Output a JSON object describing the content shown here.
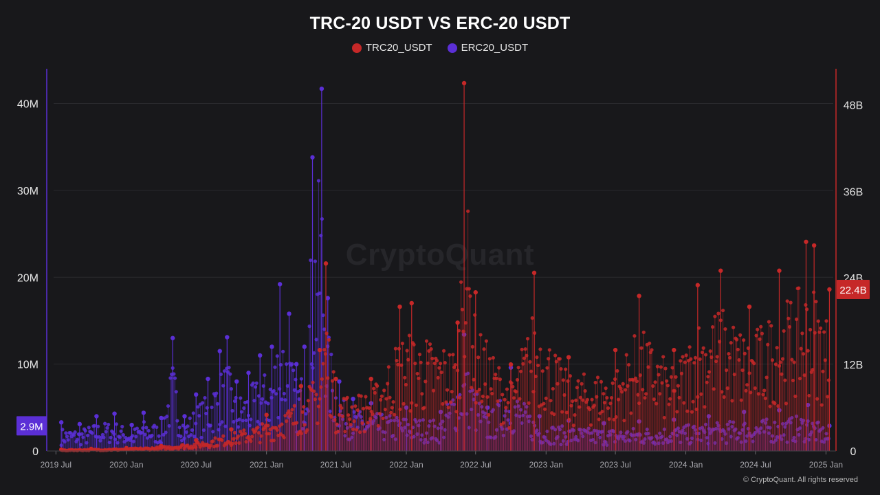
{
  "page": {
    "title": "TRC-20 USDT VS ERC-20 USDT",
    "watermark": "CryptoQuant",
    "copyright": "© CryptoQuant. All rights reserved"
  },
  "legend": [
    {
      "label": "TRC20_USDT",
      "color": "#c62828"
    },
    {
      "label": "ERC20_USDT",
      "color": "#5b2fd6"
    }
  ],
  "colors": {
    "background": "#18181b",
    "trc": "#c62828",
    "erc": "#5b2fd6",
    "grid": "#2a2a2e",
    "axis_text": "#e6e6e6"
  },
  "chart_data": {
    "type": "scatter",
    "title": "TRC-20 USDT VS ERC-20 USDT",
    "x_type": "date",
    "x_range": [
      "2019-06-25",
      "2025-01-20"
    ],
    "x_ticks": [
      "2019 Jul",
      "2020 Jan",
      "2020 Jul",
      "2021 Jan",
      "2021 Jul",
      "2022 Jan",
      "2022 Jul",
      "2023 Jan",
      "2023 Jul",
      "2024 Jan",
      "2024 Jul",
      "2025 Jan"
    ],
    "y_left": {
      "series": "ERC20_USDT",
      "range": [
        0,
        44000000
      ],
      "ticks": [
        "0",
        "10M",
        "20M",
        "30M",
        "40M"
      ],
      "last_value_badge": "2.9M"
    },
    "y_right": {
      "series": "TRC20_USDT",
      "range": [
        0,
        53000000000
      ],
      "ticks": [
        "0",
        "12B",
        "24B",
        "36B",
        "48B"
      ],
      "last_value_badge": "22.4B"
    },
    "grid": true,
    "legend_position": "top-center",
    "series": [
      {
        "name": "ERC20_USDT",
        "axis": "left",
        "points": [
          [
            "2019-07-15",
            3300000
          ],
          [
            "2019-09-01",
            3100000
          ],
          [
            "2019-10-15",
            4000000
          ],
          [
            "2019-12-01",
            4300000
          ],
          [
            "2020-01-15",
            3000000
          ],
          [
            "2020-02-15",
            4400000
          ],
          [
            "2020-04-01",
            3800000
          ],
          [
            "2020-05-01",
            13000000
          ],
          [
            "2020-06-01",
            4000000
          ],
          [
            "2020-07-01",
            6500000
          ],
          [
            "2020-08-01",
            8300000
          ],
          [
            "2020-09-01",
            11500000
          ],
          [
            "2020-09-20",
            13100000
          ],
          [
            "2020-10-15",
            8000000
          ],
          [
            "2020-11-15",
            9000000
          ],
          [
            "2020-12-15",
            11000000
          ],
          [
            "2021-01-15",
            12000000
          ],
          [
            "2021-02-05",
            19200000
          ],
          [
            "2021-03-01",
            15800000
          ],
          [
            "2021-03-20",
            10000000
          ],
          [
            "2021-04-10",
            12000000
          ],
          [
            "2021-05-01",
            33800000
          ],
          [
            "2021-05-25",
            41700000
          ],
          [
            "2021-06-10",
            17600000
          ],
          [
            "2021-07-10",
            8000000
          ],
          [
            "2021-08-15",
            6000000
          ],
          [
            "2021-10-01",
            5500000
          ],
          [
            "2022-01-01",
            5000000
          ],
          [
            "2022-04-01",
            4500000
          ],
          [
            "2022-06-01",
            13400000
          ],
          [
            "2022-08-01",
            5000000
          ],
          [
            "2022-10-01",
            9600000
          ],
          [
            "2022-12-15",
            4000000
          ],
          [
            "2023-03-01",
            3500000
          ],
          [
            "2023-06-01",
            3200000
          ],
          [
            "2023-09-01",
            3400000
          ],
          [
            "2023-12-01",
            3600000
          ],
          [
            "2024-03-01",
            4000000
          ],
          [
            "2024-06-01",
            4500000
          ],
          [
            "2024-09-01",
            4700000
          ],
          [
            "2024-11-15",
            5300000
          ],
          [
            "2025-01-10",
            2900000
          ]
        ]
      },
      {
        "name": "TRC20_USDT",
        "axis": "right",
        "points": [
          [
            "2019-07-15",
            200000000
          ],
          [
            "2019-10-01",
            300000000
          ],
          [
            "2020-01-01",
            400000000
          ],
          [
            "2020-04-01",
            700000000
          ],
          [
            "2020-07-01",
            1500000000
          ],
          [
            "2020-10-01",
            3000000000
          ],
          [
            "2021-01-01",
            5000000000
          ],
          [
            "2021-04-01",
            9000000000
          ],
          [
            "2021-05-20",
            14000000000
          ],
          [
            "2021-06-05",
            26000000000
          ],
          [
            "2021-07-01",
            10000000000
          ],
          [
            "2021-10-01",
            10000000000
          ],
          [
            "2021-12-15",
            20000000000
          ],
          [
            "2022-01-15",
            20500000000
          ],
          [
            "2022-05-15",
            17800000000
          ],
          [
            "2022-06-01",
            51000000000
          ],
          [
            "2022-07-01",
            22000000000
          ],
          [
            "2022-10-01",
            12000000000
          ],
          [
            "2022-12-01",
            24700000000
          ],
          [
            "2023-03-01",
            13000000000
          ],
          [
            "2023-07-01",
            14000000000
          ],
          [
            "2023-09-01",
            21500000000
          ],
          [
            "2023-12-01",
            14000000000
          ],
          [
            "2024-02-01",
            23000000000
          ],
          [
            "2024-04-01",
            25000000000
          ],
          [
            "2024-06-15",
            20000000000
          ],
          [
            "2024-09-01",
            25000000000
          ],
          [
            "2024-11-10",
            29000000000
          ],
          [
            "2024-12-01",
            28500000000
          ],
          [
            "2025-01-10",
            22400000000
          ]
        ]
      }
    ]
  }
}
